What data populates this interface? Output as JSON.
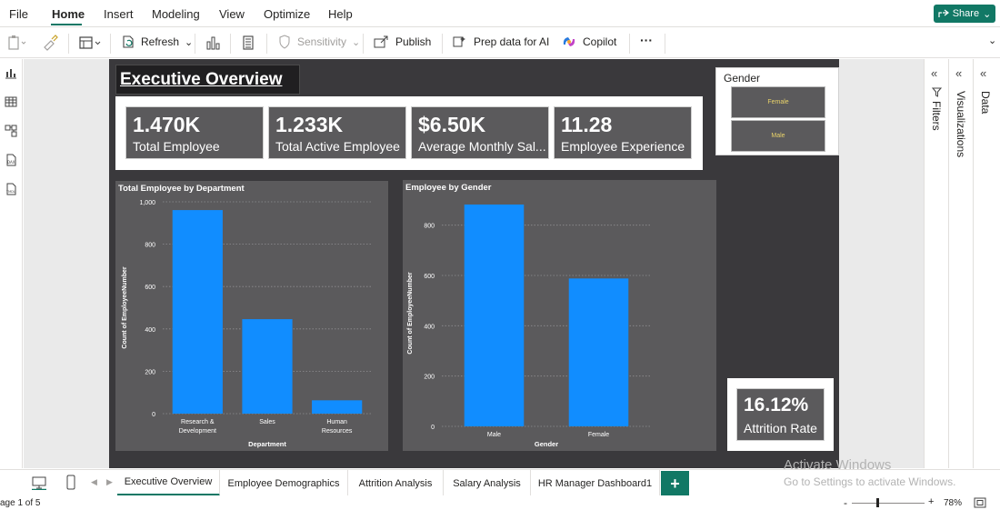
{
  "menu": {
    "items": [
      "File",
      "Home",
      "Insert",
      "Modeling",
      "View",
      "Optimize",
      "Help"
    ],
    "share_label": "Share"
  },
  "ribbon": {
    "refresh_label": "Refresh",
    "sensitivity_label": "Sensitivity",
    "publish_label": "Publish",
    "prep_label": "Prep data for AI",
    "copilot_label": "Copilot",
    "more_label": "···"
  },
  "report": {
    "title": "Executive Overview",
    "kpis": [
      {
        "value": "1.470K",
        "label": "Total Employee"
      },
      {
        "value": "1.233K",
        "label": "Total Active Employee"
      },
      {
        "value": "$6.50K",
        "label": "Average Monthly Sal..."
      },
      {
        "value": "11.28",
        "label": "Employee Experience"
      }
    ],
    "gender_slicer": {
      "title": "Gender",
      "options": [
        "Female",
        "Male"
      ],
      "option_text_color": "#e8d26a"
    },
    "attrition": {
      "value": "16.12%",
      "label": "Attrition Rate"
    }
  },
  "chart_data": [
    {
      "type": "bar",
      "title": "Total Employee by Department",
      "xlabel": "Department",
      "ylabel": "Count of EmployeeNumber",
      "categories": [
        "Research & Development",
        "Sales",
        "Human Resources"
      ],
      "category_lines": [
        [
          "Research &",
          "Development"
        ],
        [
          "Sales"
        ],
        [
          "Human",
          "Resources"
        ]
      ],
      "values": [
        961,
        446,
        63
      ],
      "ylim": [
        0,
        1000
      ],
      "yticks": [
        0,
        200,
        400,
        600,
        800
      ],
      "ytick_labels": [
        "0",
        "200",
        "400",
        "600",
        "800"
      ],
      "top_tick_label": "1,000",
      "grid": true,
      "bar_color": "#118dff"
    },
    {
      "type": "bar",
      "title": "Employee by Gender",
      "xlabel": "Gender",
      "ylabel": "Count of EmployeeNumber",
      "categories": [
        "Male",
        "Female"
      ],
      "category_lines": [
        [
          "Male"
        ],
        [
          "Female"
        ]
      ],
      "values": [
        882,
        588
      ],
      "ylim": [
        0,
        900
      ],
      "yticks": [
        0,
        200,
        400,
        600,
        800
      ],
      "ytick_labels": [
        "0",
        "200",
        "400",
        "600",
        "800"
      ],
      "top_tick_label": "",
      "grid": true,
      "bar_color": "#118dff"
    }
  ],
  "panes": {
    "filters_label": "Filters",
    "visualizations_label": "Visualizations",
    "data_label": "Data"
  },
  "tabs": {
    "pages": [
      "Executive Overview",
      "Employee Demographics",
      "Attrition Analysis",
      "Salary Analysis",
      "HR Manager Dashboard1"
    ],
    "active_index": 0,
    "add_label": "+"
  },
  "status": {
    "page_label": "age 1 of 5",
    "zoom": "78%",
    "zoom_minus": "-",
    "zoom_plus": "+"
  },
  "watermark": {
    "line1": "Activate Windows",
    "line2": "Go to Settings to activate Windows."
  },
  "colors": {
    "accent": "#117865",
    "bar": "#118dff",
    "card_bg": "#5b5a5c",
    "report_bg": "#3a393c"
  }
}
